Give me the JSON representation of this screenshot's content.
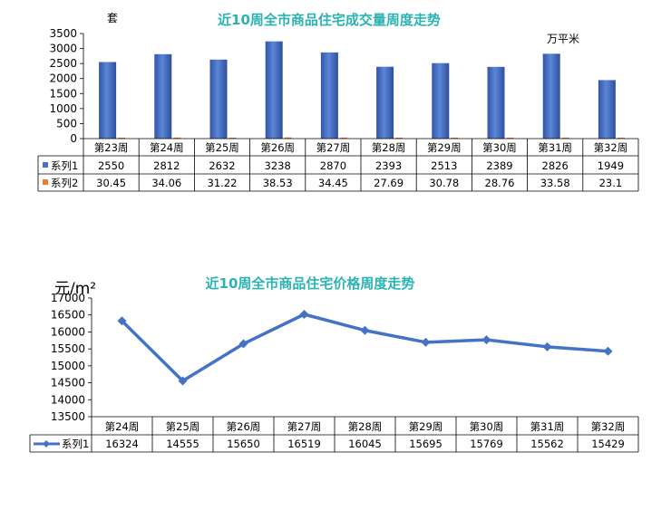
{
  "chart_data": [
    {
      "type": "bar",
      "title": "近10周全市商品住宅成交量周度走势",
      "left_unit": "套",
      "right_unit": "万平米",
      "categories": [
        "第23周",
        "第24周",
        "第25周",
        "第26周",
        "第27周",
        "第28周",
        "第29周",
        "第30周",
        "第31周",
        "第32周"
      ],
      "y_ticks": [
        "0",
        "500",
        "1000",
        "1500",
        "2000",
        "2500",
        "3000",
        "3500"
      ],
      "ylim": [
        0,
        3500
      ],
      "legend_placement": "data-table",
      "grid": false,
      "series": [
        {
          "name": "系列1",
          "color": "#4472c4",
          "values": [
            2550,
            2812,
            2632,
            3238,
            2870,
            2393,
            2513,
            2389,
            2826,
            1949
          ],
          "table_values": [
            "2550",
            "2812",
            "2632",
            "3238",
            "2870",
            "2393",
            "2513",
            "2389",
            "2826",
            "1949"
          ]
        },
        {
          "name": "系列2",
          "color": "#ed7d31",
          "values": [
            30.45,
            34.06,
            31.22,
            38.53,
            34.45,
            27.69,
            30.78,
            28.76,
            33.58,
            23.1
          ],
          "table_values": [
            "30.45",
            "34.06",
            "31.22",
            "38.53",
            "34.45",
            "27.69",
            "30.78",
            "28.76",
            "33.58",
            "23.1"
          ]
        }
      ]
    },
    {
      "type": "line",
      "title": "近10周全市商品住宅价格周度走势",
      "y_unit": "元/m²",
      "categories": [
        "第24周",
        "第25周",
        "第26周",
        "第27周",
        "第28周",
        "第29周",
        "第30周",
        "第31周",
        "第32周"
      ],
      "y_ticks": [
        "13500",
        "14000",
        "14500",
        "15000",
        "15500",
        "16000",
        "16500",
        "17000"
      ],
      "ylim": [
        13500,
        17000
      ],
      "legend_placement": "data-table",
      "grid": false,
      "series": [
        {
          "name": "系列1",
          "color": "#4472c4",
          "values": [
            16324,
            14555,
            15650,
            16519,
            16045,
            15695,
            15769,
            15562,
            15429
          ],
          "table_values": [
            "16324",
            "14555",
            "15650",
            "16519",
            "16045",
            "15695",
            "15769",
            "15562",
            "15429"
          ]
        }
      ]
    }
  ],
  "colors": {
    "title": "#2bb3b3",
    "axis": "#000000"
  }
}
